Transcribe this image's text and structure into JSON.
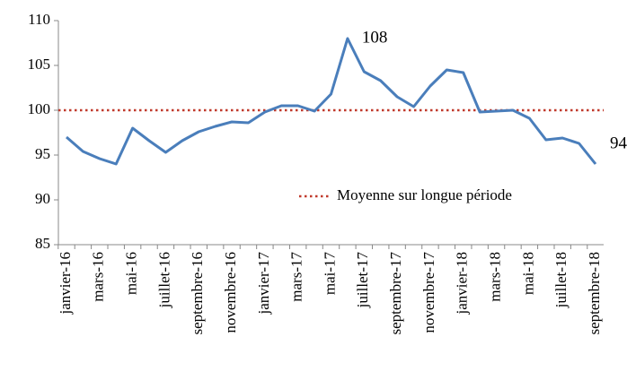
{
  "chart_data": {
    "type": "line",
    "categories": [
      "janvier-16",
      null,
      "mars-16",
      null,
      "mai-16",
      null,
      "juillet-16",
      null,
      "septembre-16",
      null,
      "novembre-16",
      null,
      "janvier-17",
      null,
      "mars-17",
      null,
      "mai-17",
      null,
      "juillet-17",
      null,
      "septembre-17",
      null,
      "novembre-17",
      null,
      "janvier-18",
      null,
      "mars-18",
      null,
      "mai-18",
      null,
      "juillet-18",
      null,
      "septembre-18"
    ],
    "series": [
      {
        "color": "#4a7ebb",
        "values": [
          97.0,
          95.4,
          94.6,
          94.0,
          98.0,
          96.6,
          95.3,
          96.6,
          97.6,
          98.2,
          98.7,
          98.6,
          99.8,
          100.5,
          100.5,
          99.9,
          101.8,
          108,
          104.3,
          103.3,
          101.5,
          100.4,
          102.7,
          104.5,
          104.2,
          99.8,
          99.9,
          100.0,
          99.1,
          96.7,
          96.9,
          96.3,
          94
        ],
        "value_labels": [
          null,
          null,
          null,
          null,
          null,
          null,
          null,
          null,
          null,
          null,
          null,
          null,
          null,
          null,
          null,
          null,
          null,
          "108",
          null,
          null,
          null,
          null,
          null,
          null,
          null,
          null,
          null,
          null,
          null,
          null,
          null,
          null,
          "94"
        ]
      }
    ],
    "reference": {
      "name": "Moyenne sur longue période",
      "value": 100,
      "color": "#c0392b"
    },
    "ylim": [
      85,
      110
    ],
    "yticks": [
      85,
      90,
      95,
      100,
      105,
      110
    ]
  }
}
